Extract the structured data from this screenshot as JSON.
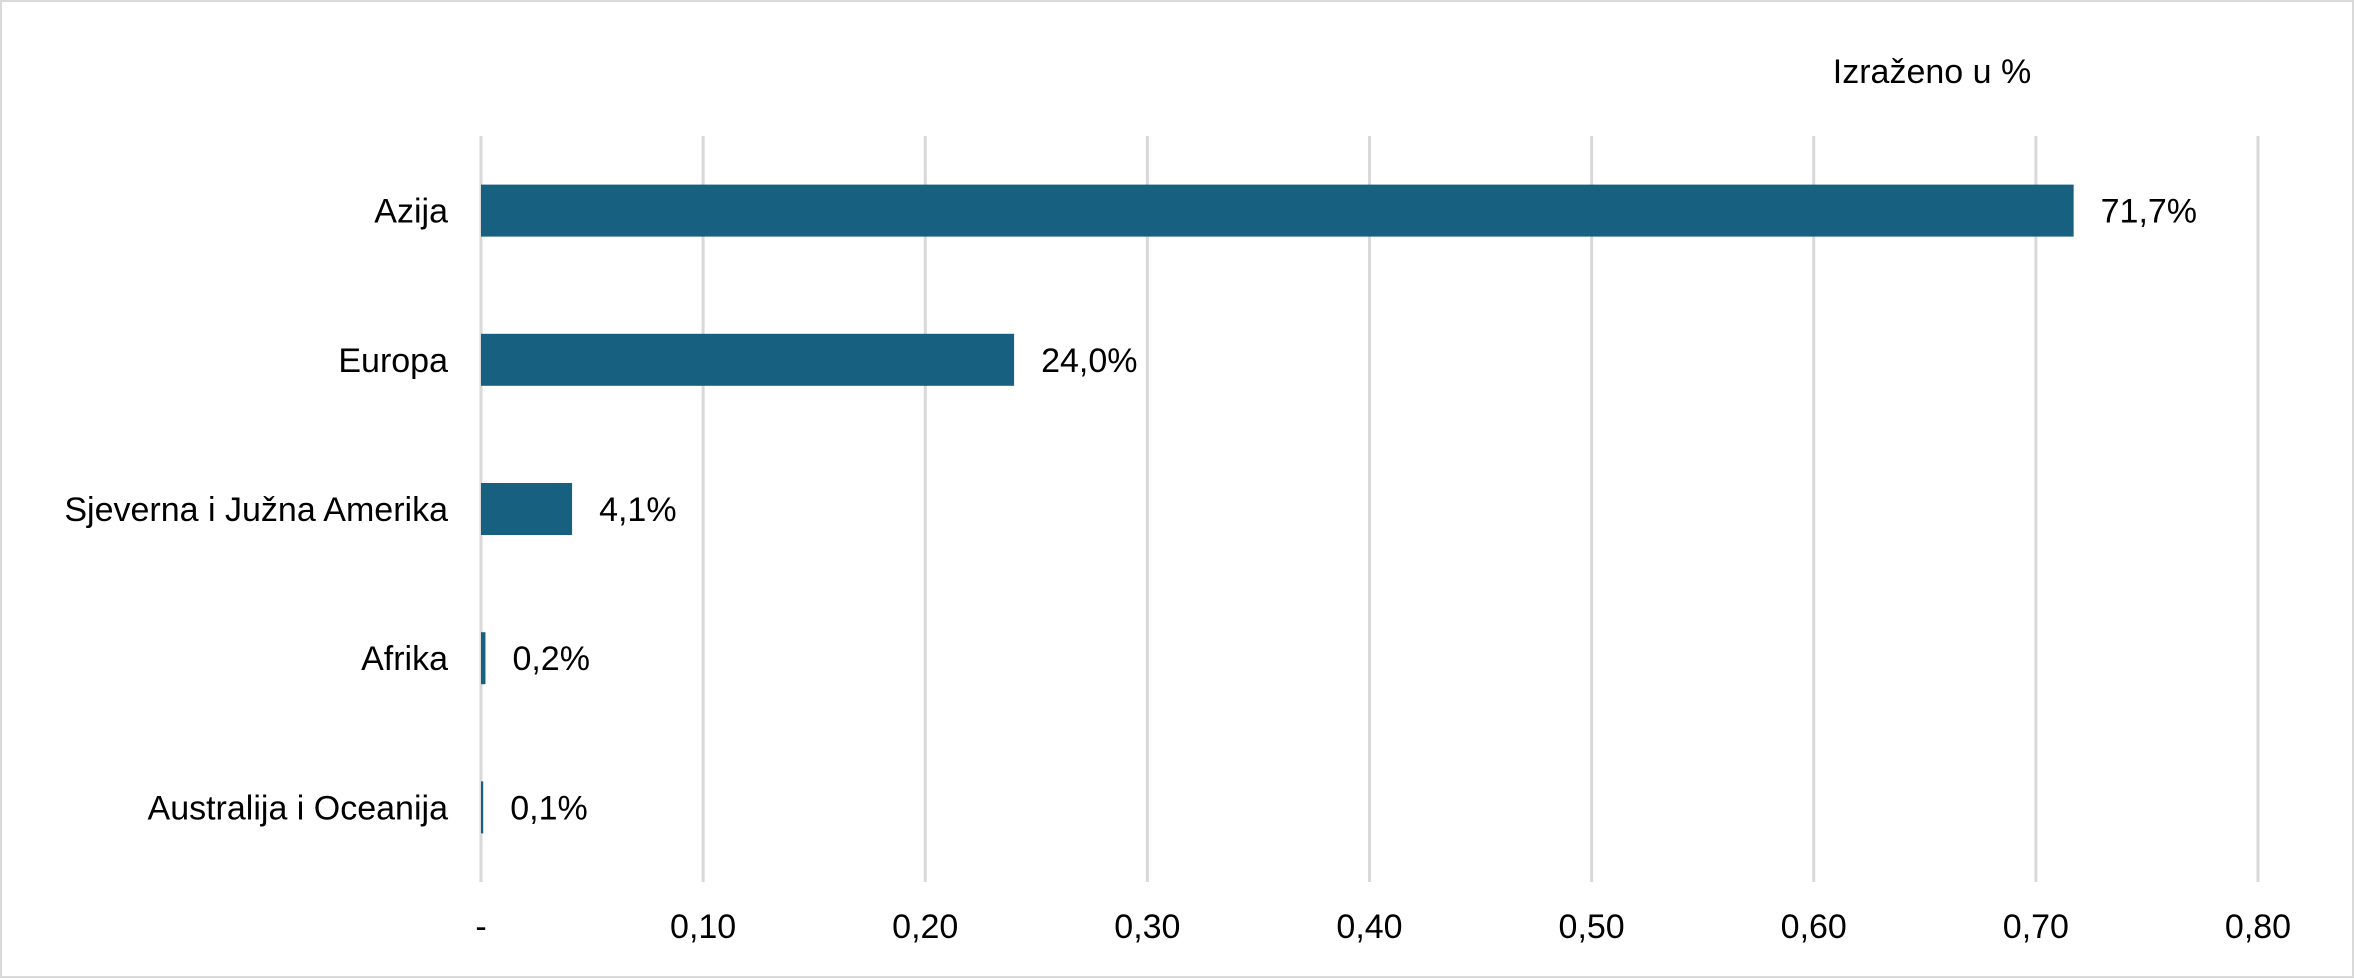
{
  "chart_data": {
    "type": "bar",
    "orientation": "horizontal",
    "unit_note": "Izraženo u %",
    "categories": [
      "Azija",
      "Europa",
      "Sjeverna i Južna Amerika",
      "Afrika",
      "Australija i Oceanija"
    ],
    "values": [
      0.717,
      0.24,
      0.041,
      0.002,
      0.001
    ],
    "data_labels": [
      "71,7%",
      "24,0%",
      "4,1%",
      "0,2%",
      "0,1%"
    ],
    "xlim": [
      0,
      0.8
    ],
    "x_ticks": [
      0,
      0.1,
      0.2,
      0.3,
      0.4,
      0.5,
      0.6,
      0.7,
      0.8
    ],
    "x_tick_labels": [
      "-",
      "0,10",
      "0,20",
      "0,30",
      "0,40",
      "0,50",
      "0,60",
      "0,70",
      "0,80"
    ],
    "grid": true,
    "legend": "none",
    "bar_color": "#17607f",
    "grid_color": "#d9d9d9"
  }
}
